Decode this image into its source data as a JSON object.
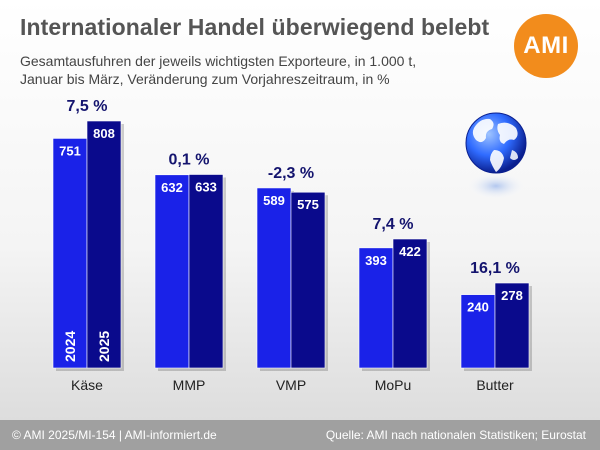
{
  "title": "Internationaler Handel überwiegend belebt",
  "subtitle_line1": "Gesamtausfuhren der jeweils wichtigsten Exporteure, in 1.000 t,",
  "subtitle_line2": "Januar bis März, Veränderung zum Vorjahreszeitraum, in %",
  "logo_text": "AMI",
  "footer": {
    "left": "© AMI 2025/MI-154 | AMI-informiert.de",
    "right": "Quelle:  AMI nach nationalen Statistiken; Eurostat"
  },
  "colors": {
    "series_2024": "#1a22e8",
    "series_2025": "#0a0a8c",
    "change_label": "#14146e",
    "category_label": "#222222"
  },
  "chart_data": {
    "type": "bar",
    "categories": [
      "Käse",
      "MMP",
      "VMP",
      "MoPu",
      "Butter"
    ],
    "series": [
      {
        "name": "2024",
        "values": [
          751,
          632,
          589,
          393,
          240
        ]
      },
      {
        "name": "2025",
        "values": [
          808,
          633,
          575,
          422,
          278
        ]
      }
    ],
    "changes": [
      "7,5 %",
      "0,1 %",
      "-2,3 %",
      "7,4 %",
      "16,1 %"
    ],
    "ylim": [
      0,
      808
    ],
    "grid": false,
    "legend": "inside first bars (vertical labels)"
  }
}
